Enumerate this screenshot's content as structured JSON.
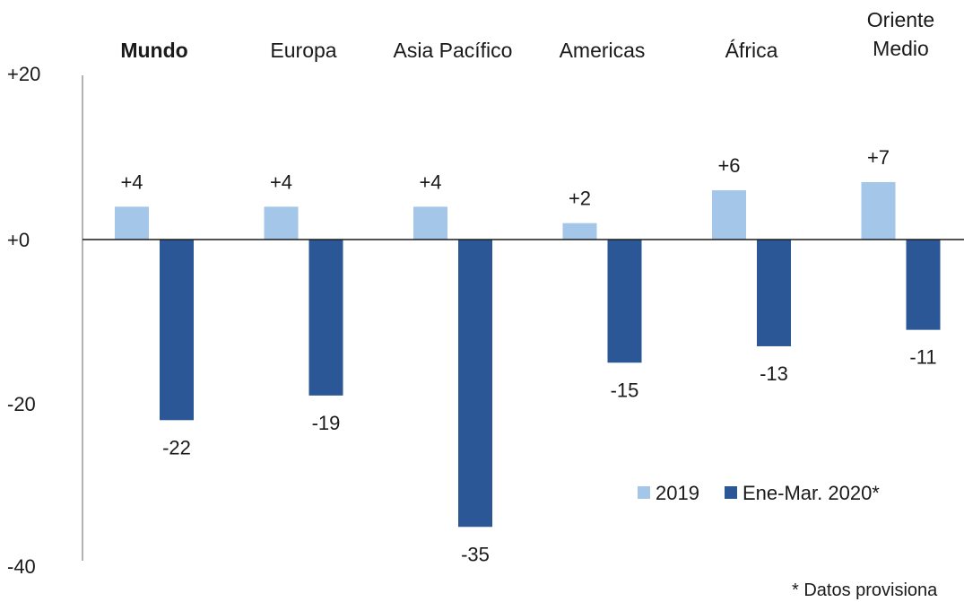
{
  "chart_data": {
    "type": "bar",
    "categories": [
      "Mundo",
      "Europa",
      "Asia Pacífico",
      "Americas",
      "África",
      "Oriente Medio"
    ],
    "highlight_category": "Mundo",
    "series": [
      {
        "name": "2019",
        "values": [
          4,
          4,
          4,
          2,
          6,
          7
        ],
        "labels": [
          "+4",
          "+4",
          "+4",
          "+2",
          "+6",
          "+7"
        ],
        "color": "#a4c6e8"
      },
      {
        "name": "Ene-Mar. 2020*",
        "values": [
          -22,
          -19,
          -35,
          -15,
          -13,
          -11
        ],
        "labels": [
          "-22",
          "-19",
          "-35",
          "-15",
          "-13",
          "-11"
        ],
        "color": "#2b5797"
      }
    ],
    "yticks": [
      20,
      0,
      -20,
      -40
    ],
    "ytick_labels": [
      "+20",
      "+0",
      "-20",
      "-40"
    ],
    "ylim": [
      -40,
      20
    ],
    "grid": false,
    "legend_position": "bottom-right",
    "footnote": "* Datos provisiona"
  }
}
